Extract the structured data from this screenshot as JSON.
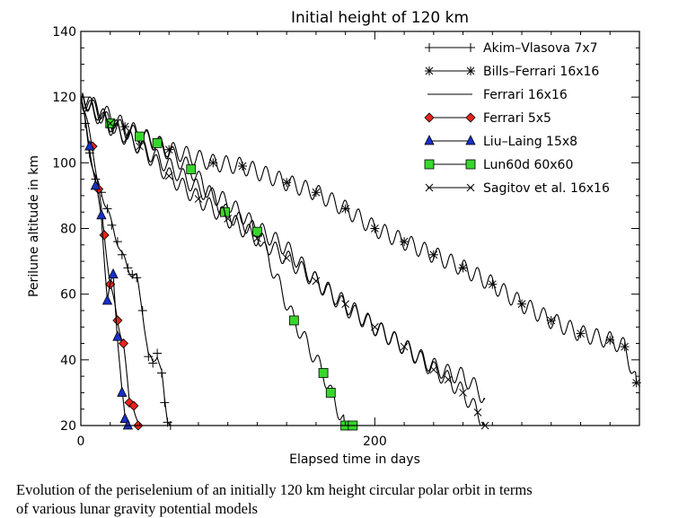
{
  "chart_data": {
    "type": "line",
    "title": "Initial height of 120 km",
    "xlabel": "Elapsed time in days",
    "ylabel": "Perilune altitude in km",
    "xlim": [
      0,
      380
    ],
    "ylim": [
      20,
      140
    ],
    "xticks": [
      0,
      200
    ],
    "yticks": [
      20,
      40,
      60,
      80,
      100,
      120,
      140
    ],
    "grid": false,
    "legend_position": "top-right",
    "series": [
      {
        "name": "Akim–Vlasova 7x7",
        "marker": "plus",
        "x": [
          0,
          3,
          6,
          10,
          14,
          18,
          21,
          25,
          28,
          32,
          35,
          38,
          42,
          46,
          49,
          52,
          55,
          57,
          59,
          61
        ],
        "y": [
          120,
          112,
          103,
          95,
          91,
          86,
          81,
          76,
          72,
          68,
          66,
          65,
          55,
          41,
          39,
          42,
          36,
          27,
          21,
          20
        ]
      },
      {
        "name": "Bills–Ferrari 16x16",
        "marker": "asterisk",
        "x": [
          0,
          30,
          60,
          90,
          110,
          140,
          160,
          180,
          200,
          220,
          240,
          260,
          280,
          300,
          320,
          340,
          360,
          370,
          378
        ],
        "y": [
          120,
          111,
          104,
          100,
          99,
          94,
          91,
          86,
          80,
          76,
          72,
          68,
          63,
          57,
          52,
          48,
          46,
          44,
          33
        ]
      },
      {
        "name": "Ferrari 16x16",
        "marker": "none",
        "x": [
          0,
          20,
          40,
          60,
          80,
          100,
          120,
          140,
          160,
          180,
          200,
          220,
          240,
          250,
          260,
          270,
          275
        ],
        "y": [
          119,
          111,
          105,
          99,
          92,
          88,
          80,
          74,
          64,
          56,
          50,
          44,
          38,
          36,
          35,
          31,
          28
        ]
      },
      {
        "name": "Ferrari 5x5",
        "marker": "diamond",
        "x": [
          0,
          8,
          12,
          16,
          20,
          25,
          29,
          33,
          36,
          39
        ],
        "y": [
          120,
          105,
          92,
          78,
          63,
          52,
          45,
          27,
          26,
          20
        ]
      },
      {
        "name": "Liu–Laing 15x8",
        "marker": "triangle",
        "x": [
          0,
          6,
          10,
          14,
          18,
          22,
          25,
          28,
          30,
          32
        ],
        "y": [
          120,
          105,
          93,
          84,
          58,
          66,
          47,
          30,
          22,
          20
        ]
      },
      {
        "name": "Lun60d 60x60",
        "marker": "square",
        "x": [
          0,
          20,
          40,
          52,
          75,
          98,
          120,
          145,
          165,
          170,
          180,
          185
        ],
        "y": [
          120,
          112,
          108,
          106,
          98,
          85,
          79,
          52,
          36,
          30,
          20,
          20
        ]
      },
      {
        "name": "Sagitov et al. 16x16",
        "marker": "x",
        "x": [
          0,
          20,
          40,
          60,
          80,
          100,
          120,
          140,
          160,
          180,
          200,
          220,
          240,
          250,
          260,
          270,
          275
        ],
        "y": [
          120,
          112,
          105,
          96,
          89,
          83,
          77,
          71,
          64,
          57,
          50,
          44,
          37,
          34,
          30,
          24,
          20
        ]
      }
    ]
  },
  "caption": {
    "line1": "Evolution of the periselenium of an initially 120 km height circular polar orbit in terms",
    "line2": "of various lunar gravity potential models"
  },
  "colors": {
    "axis": "#000000",
    "ferrari5x5_marker": "#e8231b",
    "liulaing_marker": "#1830c8",
    "lun60d_marker": "#37d62c"
  }
}
